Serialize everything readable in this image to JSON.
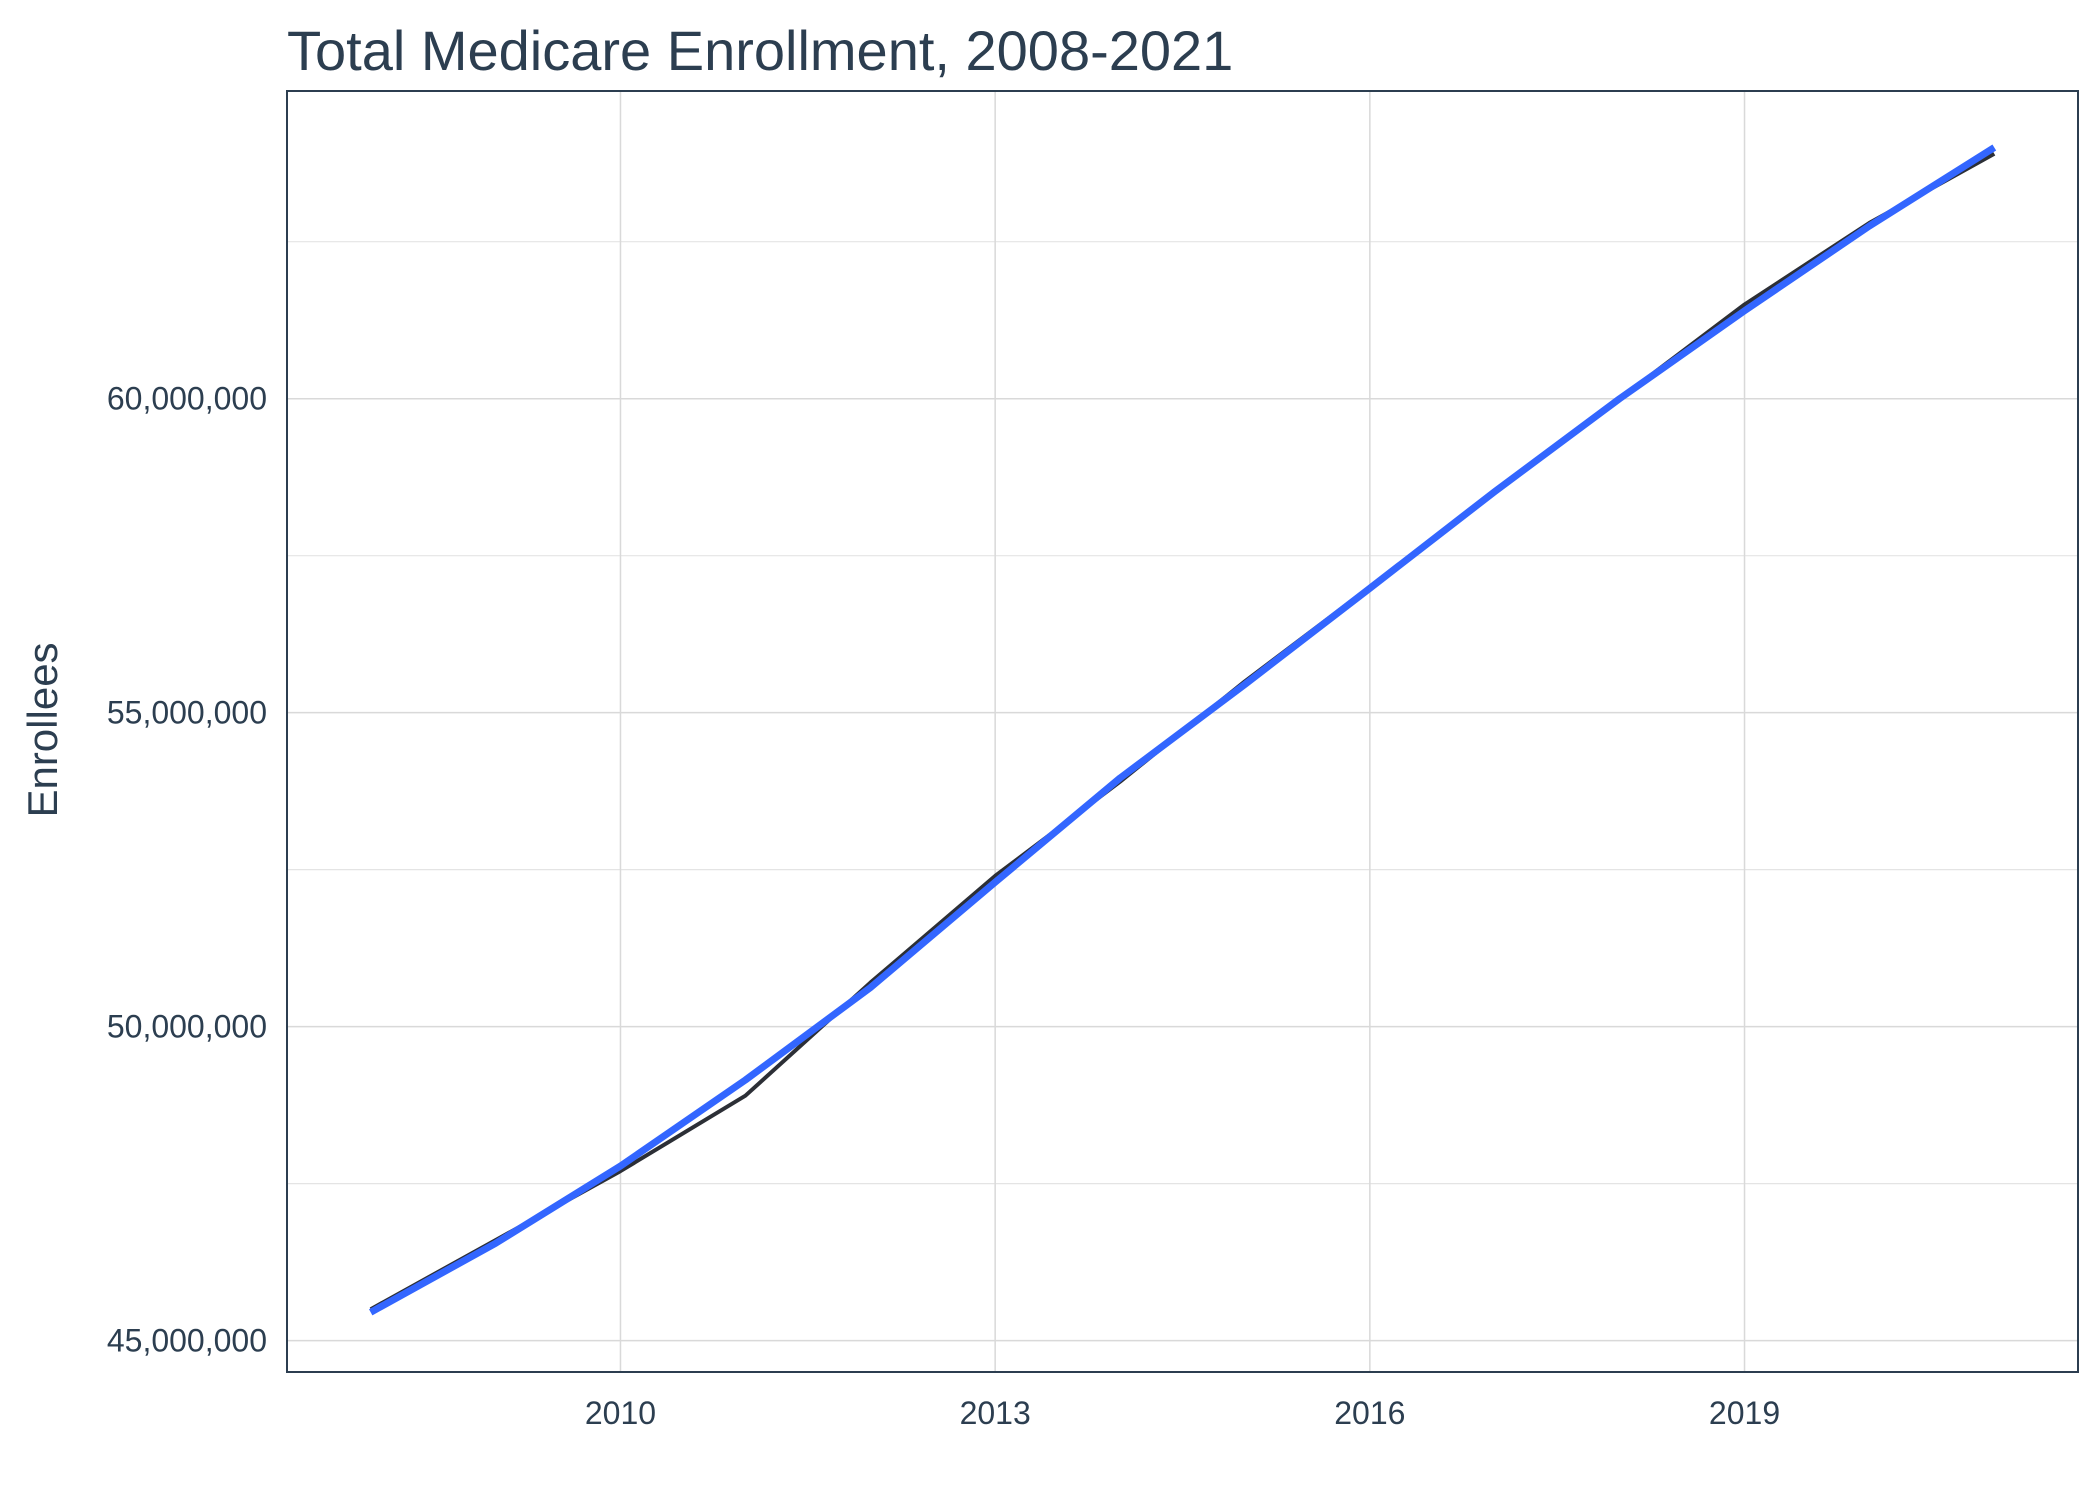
{
  "chart_data": {
    "type": "line",
    "title": "Total Medicare Enrollment, 2008-2021",
    "xlabel": "",
    "ylabel": "Enrollees",
    "xlim": [
      2007.33,
      2021.67
    ],
    "ylim": [
      44500000,
      64900000
    ],
    "x_ticks": [
      2010,
      2013,
      2016,
      2019
    ],
    "x_tick_labels": [
      "2010",
      "2013",
      "2016",
      "2019"
    ],
    "x_minor_ticks": [],
    "y_ticks": [
      45000000,
      50000000,
      55000000,
      60000000
    ],
    "y_tick_labels": [
      "45,000,000",
      "50,000,000",
      "55,000,000",
      "60,000,000"
    ],
    "y_minor_ticks": [
      47500000,
      52500000,
      57500000,
      62500000
    ],
    "grid": true,
    "legend": "none",
    "series": [
      {
        "color": "#2c2f36",
        "line_width": 4,
        "x": [
          2008,
          2009,
          2010,
          2011,
          2012,
          2013,
          2014,
          2015,
          2016,
          2017,
          2018,
          2019,
          2020,
          2021
        ],
        "y": [
          45500000,
          46600000,
          47700000,
          48900000,
          50700000,
          52400000,
          53900000,
          55500000,
          57000000,
          58500000,
          60000000,
          61500000,
          62800000,
          63900000
        ]
      },
      {
        "color": "#3366ff",
        "line_width": 7,
        "x": [
          2008,
          2009,
          2010,
          2011,
          2012,
          2013,
          2014,
          2015,
          2016,
          2017,
          2018,
          2019,
          2020,
          2021
        ],
        "y": [
          45450000,
          46550000,
          47780000,
          49150000,
          50620000,
          52300000,
          53960000,
          55450000,
          56980000,
          58520000,
          60000000,
          61400000,
          62750000,
          64000000
        ]
      }
    ]
  }
}
